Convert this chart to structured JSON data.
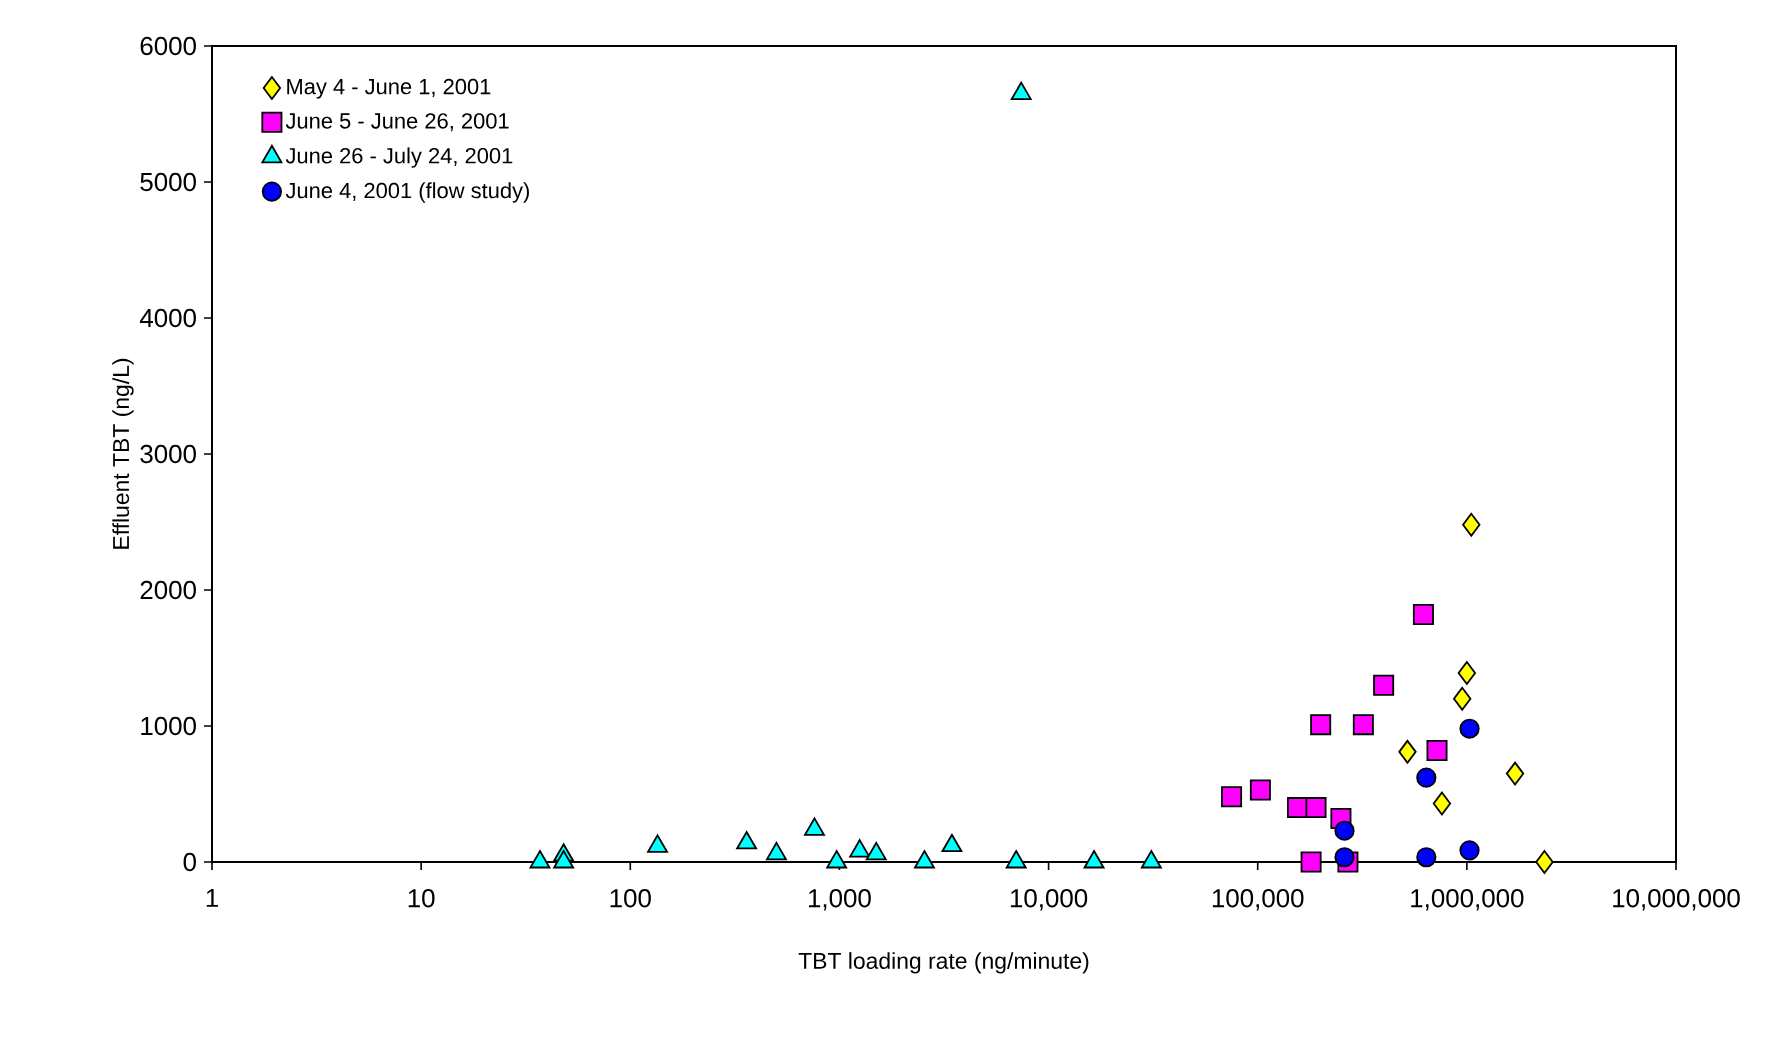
{
  "chart_data": {
    "type": "scatter",
    "xlabel": "TBT loading rate (ng/minute)",
    "ylabel": "Effluent TBT (ng/L)",
    "log": "x",
    "grid": false,
    "legend": "top left",
    "xlim": [
      1,
      10000000
    ],
    "ylim": [
      0,
      6000
    ],
    "xticks": [
      1,
      10,
      100,
      {
        "value": 1000,
        "label": "1,000"
      },
      {
        "value": 10000,
        "label": "10,000"
      },
      {
        "value": 100000,
        "label": "100,000"
      },
      {
        "value": 1000000,
        "label": "1,000,000"
      },
      {
        "value": 10000000,
        "label": "10,000,000"
      }
    ],
    "yticks": [
      0,
      1000,
      2000,
      3000,
      4000,
      5000,
      6000
    ],
    "series": [
      {
        "name": "May 4 - June 1, 2001",
        "color": "#ffff00",
        "marker": "diamond",
        "x": [
          1050000,
          1000000,
          950000,
          520000,
          760000,
          1700000,
          2350000
        ],
        "values": [
          2480,
          1390,
          1200,
          810,
          430,
          650,
          0
        ]
      },
      {
        "name": "June 5 - June 26, 2001",
        "color": "#ff00ff",
        "marker": "square",
        "x": [
          620000,
          400000,
          200000,
          320000,
          720000,
          75000,
          103000,
          155000,
          190000,
          250000,
          180000,
          270000
        ],
        "values": [
          1820,
          1300,
          1010,
          1010,
          820,
          480,
          530,
          400,
          400,
          320,
          0,
          0
        ]
      },
      {
        "name": "June 26 - July 24, 2001",
        "color": "#00ffff",
        "marker": "triangle",
        "x": [
          37,
          48,
          48,
          135,
          360,
          500,
          760,
          970,
          1250,
          1500,
          2550,
          3450,
          7000,
          16500,
          31000,
          7400
        ],
        "values": [
          0,
          50,
          0,
          115,
          140,
          60,
          240,
          0,
          80,
          60,
          0,
          120,
          0,
          0,
          0,
          5650
        ]
      },
      {
        "name": "June 4, 2001 (flow study)",
        "color": "#0000ff",
        "marker": "circle",
        "x": [
          1030000,
          640000,
          260000,
          260000,
          640000,
          1030000
        ],
        "values": [
          980,
          620,
          230,
          35,
          35,
          85
        ]
      }
    ]
  }
}
